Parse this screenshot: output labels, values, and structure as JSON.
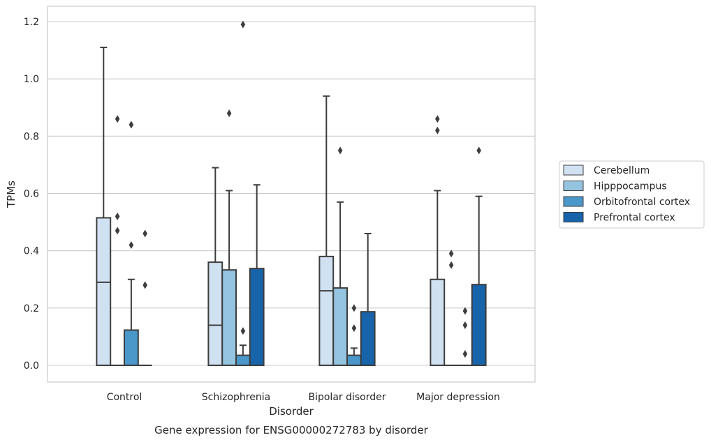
{
  "chart_data": {
    "type": "boxplot",
    "title": "Gene expression for ENSG00000272783 by disorder",
    "xlabel": "Disorder",
    "ylabel": "TPMs",
    "ylim": [
      -0.06,
      1.25
    ],
    "yticks": [
      0.0,
      0.2,
      0.4,
      0.6,
      0.8,
      1.0,
      1.2
    ],
    "ytick_labels": [
      "0.0",
      "0.2",
      "0.4",
      "0.6",
      "0.8",
      "1.0",
      "1.2"
    ],
    "grid": "horizontal",
    "legend_position": "right",
    "categories": [
      "Control",
      "Schizophrenia",
      "Bipolar disorder",
      "Major depression"
    ],
    "series": [
      {
        "name": "Cerebellum",
        "color": "#d0e1f2",
        "boxes": [
          {
            "q1": 0.0,
            "median": 0.29,
            "q3": 0.515,
            "whisker_low": 0.0,
            "whisker_high": 1.11,
            "outliers": []
          },
          {
            "q1": 0.0,
            "median": 0.14,
            "q3": 0.36,
            "whisker_low": 0.0,
            "whisker_high": 0.69,
            "outliers": []
          },
          {
            "q1": 0.0,
            "median": 0.26,
            "q3": 0.38,
            "whisker_low": 0.0,
            "whisker_high": 0.94,
            "outliers": []
          },
          {
            "q1": 0.0,
            "median": 0.0,
            "q3": 0.3,
            "whisker_low": 0.0,
            "whisker_high": 0.61,
            "outliers": [
              0.82,
              0.86
            ]
          }
        ]
      },
      {
        "name": "Hipppocampus",
        "color": "#94c4df",
        "boxes": [
          {
            "q1": 0.0,
            "median": 0.0,
            "q3": 0.0,
            "whisker_low": 0.0,
            "whisker_high": 0.0,
            "outliers": [
              0.47,
              0.52,
              0.86
            ]
          },
          {
            "q1": 0.0,
            "median": 0.0,
            "q3": 0.333,
            "whisker_low": 0.0,
            "whisker_high": 0.61,
            "outliers": [
              0.88
            ]
          },
          {
            "q1": 0.0,
            "median": 0.0,
            "q3": 0.27,
            "whisker_low": 0.0,
            "whisker_high": 0.57,
            "outliers": [
              0.75
            ]
          },
          {
            "q1": 0.0,
            "median": 0.0,
            "q3": 0.0,
            "whisker_low": 0.0,
            "whisker_high": 0.0,
            "outliers": [
              0.35,
              0.39
            ]
          }
        ]
      },
      {
        "name": "Orbitofrontal cortex",
        "color": "#4a98c9",
        "boxes": [
          {
            "q1": 0.0,
            "median": 0.0,
            "q3": 0.123,
            "whisker_low": 0.0,
            "whisker_high": 0.3,
            "outliers": [
              0.42,
              0.84
            ]
          },
          {
            "q1": 0.0,
            "median": 0.0,
            "q3": 0.035,
            "whisker_low": 0.0,
            "whisker_high": 0.07,
            "outliers": [
              0.12,
              1.19
            ]
          },
          {
            "q1": 0.0,
            "median": 0.0,
            "q3": 0.035,
            "whisker_low": 0.0,
            "whisker_high": 0.06,
            "outliers": [
              0.13,
              0.2
            ]
          },
          {
            "q1": 0.0,
            "median": 0.0,
            "q3": 0.0,
            "whisker_low": 0.0,
            "whisker_high": 0.0,
            "outliers": [
              0.04,
              0.14,
              0.19
            ]
          }
        ]
      },
      {
        "name": "Prefrontal cortex",
        "color": "#1764ab",
        "boxes": [
          {
            "q1": 0.0,
            "median": 0.0,
            "q3": 0.0,
            "whisker_low": 0.0,
            "whisker_high": 0.0,
            "outliers": [
              0.28,
              0.46
            ]
          },
          {
            "q1": 0.0,
            "median": 0.0,
            "q3": 0.338,
            "whisker_low": 0.0,
            "whisker_high": 0.63,
            "outliers": []
          },
          {
            "q1": 0.0,
            "median": 0.0,
            "q3": 0.187,
            "whisker_low": 0.0,
            "whisker_high": 0.46,
            "outliers": []
          },
          {
            "q1": 0.0,
            "median": 0.0,
            "q3": 0.282,
            "whisker_low": 0.0,
            "whisker_high": 0.59,
            "outliers": [
              0.75
            ]
          }
        ]
      }
    ]
  }
}
